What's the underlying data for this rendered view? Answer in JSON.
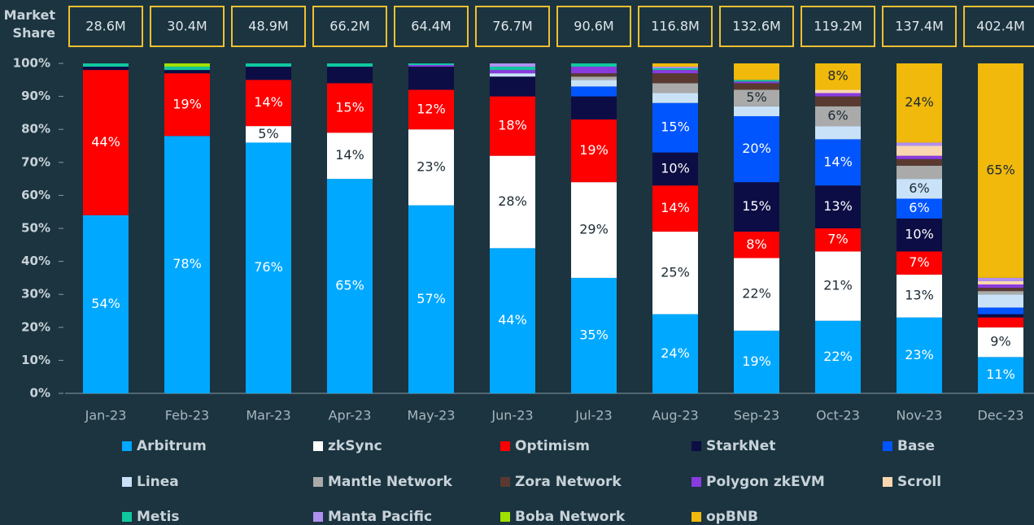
{
  "chart_data": {
    "type": "stacked_bar_100",
    "y_axis_label": "Market Share",
    "categories": [
      "Jan-23",
      "Feb-23",
      "Mar-23",
      "Apr-23",
      "May-23",
      "Jun-23",
      "Jul-23",
      "Aug-23",
      "Sep-23",
      "Oct-23",
      "Nov-23",
      "Dec-23"
    ],
    "totals": [
      "28.6M",
      "30.4M",
      "48.9M",
      "66.2M",
      "64.4M",
      "76.7M",
      "90.6M",
      "116.8M",
      "132.6M",
      "119.2M",
      "137.4M",
      "402.4M"
    ],
    "ylim": [
      0,
      100
    ],
    "yticks": [
      {
        "value": 0,
        "label": "0%"
      },
      {
        "value": 10,
        "label": "10%"
      },
      {
        "value": 20,
        "label": "20%"
      },
      {
        "value": 30,
        "label": "30%"
      },
      {
        "value": 40,
        "label": "40%"
      },
      {
        "value": 50,
        "label": "50%"
      },
      {
        "value": 60,
        "label": "60%"
      },
      {
        "value": 70,
        "label": "70%"
      },
      {
        "value": 80,
        "label": "80%"
      },
      {
        "value": 90,
        "label": "90%"
      },
      {
        "value": 100,
        "label": "100%"
      }
    ],
    "series": [
      {
        "name": "Arbitrum",
        "color": "#00a8ff",
        "values": [
          54,
          78,
          76,
          65,
          57,
          44,
          35,
          24,
          19,
          22,
          23,
          11
        ],
        "value_labels": [
          "54%",
          "78%",
          "76%",
          "65%",
          "57%",
          "44%",
          "35%",
          "24%",
          "19%",
          "22%",
          "23%",
          "11%"
        ]
      },
      {
        "name": "zkSync",
        "color": "#ffffff",
        "values": [
          0,
          0,
          5,
          14,
          23,
          28,
          29,
          25,
          22,
          21,
          13,
          9
        ],
        "value_labels": [
          null,
          null,
          "5%",
          "14%",
          "23%",
          "28%",
          "29%",
          "25%",
          "22%",
          "21%",
          "13%",
          "9%"
        ]
      },
      {
        "name": "Optimism",
        "color": "#ff0000",
        "values": [
          44,
          19,
          14,
          15,
          12,
          18,
          19,
          14,
          8,
          7,
          7,
          3
        ],
        "value_labels": [
          "44%",
          "19%",
          "14%",
          "15%",
          "12%",
          "18%",
          "19%",
          "14%",
          "8%",
          "7%",
          "7%",
          null
        ]
      },
      {
        "name": "StarkNet",
        "color": "#0d0d45",
        "values": [
          1,
          1,
          4,
          5,
          7,
          6,
          7,
          10,
          15,
          13,
          10,
          1
        ],
        "value_labels": [
          null,
          null,
          null,
          null,
          null,
          null,
          null,
          "10%",
          "15%",
          "13%",
          "10%",
          null
        ]
      },
      {
        "name": "Base",
        "color": "#0055ff",
        "values": [
          0,
          0,
          0,
          0,
          0,
          0,
          3,
          15,
          20,
          14,
          6,
          2
        ],
        "value_labels": [
          null,
          null,
          null,
          null,
          null,
          null,
          null,
          "15%",
          "20%",
          "14%",
          "6%",
          null
        ]
      },
      {
        "name": "Linea",
        "color": "#c9e2f8",
        "values": [
          0,
          0,
          0,
          0,
          0,
          1,
          2,
          3,
          3,
          4,
          6,
          4
        ],
        "value_labels": [
          null,
          null,
          null,
          null,
          null,
          null,
          null,
          null,
          null,
          null,
          "6%",
          null
        ]
      },
      {
        "name": "Mantle Network",
        "color": "#aaaaaa",
        "values": [
          0,
          0,
          0,
          0,
          0,
          0,
          1,
          3,
          5,
          6,
          4,
          1
        ],
        "value_labels": [
          null,
          null,
          null,
          null,
          null,
          null,
          null,
          null,
          "5%",
          "6%",
          null,
          null
        ]
      },
      {
        "name": "Zora Network",
        "color": "#5a3a30",
        "values": [
          0,
          0,
          0,
          0,
          0,
          0,
          1,
          3,
          2,
          3,
          2,
          1
        ],
        "value_labels": [
          null,
          null,
          null,
          null,
          null,
          null,
          null,
          null,
          null,
          null,
          null,
          null
        ]
      },
      {
        "name": "Polygon zkEVM",
        "color": "#8a3be0",
        "values": [
          0,
          0,
          0,
          0,
          0.5,
          1,
          2,
          1,
          0.5,
          1,
          1,
          1
        ],
        "value_labels": [
          null,
          null,
          null,
          null,
          null,
          null,
          null,
          null,
          null,
          null,
          null,
          null
        ]
      },
      {
        "name": "Scroll",
        "color": "#fad7b0",
        "values": [
          0,
          0,
          0,
          0,
          0,
          0,
          0,
          0,
          0,
          1,
          3,
          1
        ],
        "value_labels": [
          null,
          null,
          null,
          null,
          null,
          null,
          null,
          null,
          null,
          null,
          null,
          null
        ]
      },
      {
        "name": "Metis",
        "color": "#10c8a0",
        "values": [
          1,
          1,
          1,
          1,
          0.5,
          1,
          1,
          0.5,
          0.5,
          0,
          0,
          0
        ],
        "value_labels": [
          null,
          null,
          null,
          null,
          null,
          null,
          null,
          null,
          null,
          null,
          null,
          null
        ]
      },
      {
        "name": "Manta Pacific",
        "color": "#b090f0",
        "values": [
          0,
          0,
          0,
          0,
          0,
          1,
          0,
          0.5,
          0,
          0,
          1,
          1
        ],
        "value_labels": [
          null,
          null,
          null,
          null,
          null,
          null,
          null,
          null,
          null,
          null,
          null,
          null
        ]
      },
      {
        "name": "Boba Network",
        "color": "#a0e000",
        "values": [
          0,
          1,
          0,
          0,
          0,
          0,
          0,
          0,
          0,
          0,
          0,
          0
        ],
        "value_labels": [
          null,
          null,
          null,
          null,
          null,
          null,
          null,
          null,
          null,
          null,
          null,
          null
        ]
      },
      {
        "name": "opBNB",
        "color": "#f0b90b",
        "values": [
          0,
          0,
          0,
          0,
          0,
          0,
          0,
          1,
          5,
          8,
          24,
          65
        ],
        "value_labels": [
          null,
          null,
          null,
          null,
          null,
          null,
          null,
          null,
          null,
          "8%",
          "24%",
          "65%"
        ]
      }
    ]
  }
}
